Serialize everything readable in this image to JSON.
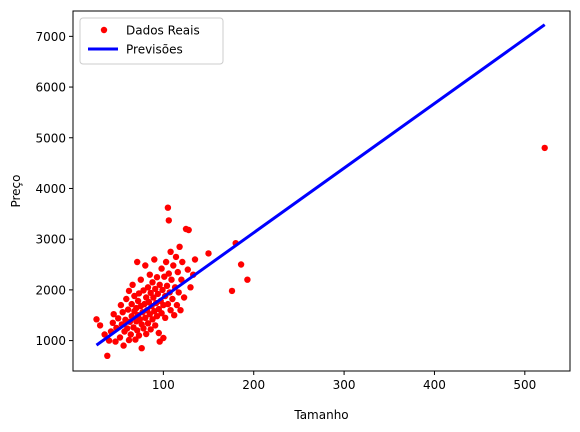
{
  "chart_data": {
    "type": "scatter",
    "title": "",
    "xlabel": "Tamanho",
    "ylabel": "Preço",
    "xlim": [
      0,
      550
    ],
    "ylim": [
      400,
      7500
    ],
    "xticks": [
      100,
      200,
      300,
      400,
      500
    ],
    "yticks": [
      1000,
      2000,
      3000,
      4000,
      5000,
      6000,
      7000
    ],
    "legend": {
      "placement": "top-left"
    },
    "series": [
      {
        "name": "Dados Reais",
        "kind": "scatter",
        "color": "#ff0000",
        "points": [
          [
            26,
            1420
          ],
          [
            30,
            1300
          ],
          [
            35,
            1120
          ],
          [
            38,
            700
          ],
          [
            40,
            1000
          ],
          [
            42,
            1180
          ],
          [
            44,
            1350
          ],
          [
            45,
            1520
          ],
          [
            47,
            980
          ],
          [
            48,
            1250
          ],
          [
            50,
            1440
          ],
          [
            52,
            1060
          ],
          [
            53,
            1700
          ],
          [
            54,
            1320
          ],
          [
            55,
            1560
          ],
          [
            56,
            900
          ],
          [
            57,
            1180
          ],
          [
            58,
            1410
          ],
          [
            59,
            1820
          ],
          [
            60,
            1240
          ],
          [
            61,
            1610
          ],
          [
            62,
            1010
          ],
          [
            62,
            1980
          ],
          [
            63,
            1370
          ],
          [
            64,
            1120
          ],
          [
            65,
            1720
          ],
          [
            65,
            1480
          ],
          [
            66,
            2100
          ],
          [
            67,
            1260
          ],
          [
            68,
            1580
          ],
          [
            68,
            1880
          ],
          [
            69,
            1020
          ],
          [
            70,
            1380
          ],
          [
            70,
            1640
          ],
          [
            71,
            2550
          ],
          [
            71,
            1200
          ],
          [
            72,
            1780
          ],
          [
            72,
            1500
          ],
          [
            73,
            1930
          ],
          [
            73,
            1100
          ],
          [
            74,
            1420
          ],
          [
            75,
            2200
          ],
          [
            75,
            1680
          ],
          [
            76,
            1320
          ],
          [
            76,
            850
          ],
          [
            77,
            1560
          ],
          [
            78,
            1990
          ],
          [
            78,
            1240
          ],
          [
            79,
            1720
          ],
          [
            80,
            2480
          ],
          [
            80,
            1450
          ],
          [
            81,
            1130
          ],
          [
            81,
            1850
          ],
          [
            82,
            1600
          ],
          [
            83,
            2050
          ],
          [
            83,
            1340
          ],
          [
            84,
            1760
          ],
          [
            85,
            1520
          ],
          [
            85,
            2300
          ],
          [
            86,
            1220
          ],
          [
            86,
            1940
          ],
          [
            87,
            1680
          ],
          [
            88,
            2150
          ],
          [
            88,
            1420
          ],
          [
            89,
            1850
          ],
          [
            90,
            1580
          ],
          [
            90,
            2600
          ],
          [
            91,
            1300
          ],
          [
            91,
            2020
          ],
          [
            92,
            1740
          ],
          [
            93,
            1480
          ],
          [
            93,
            2250
          ],
          [
            94,
            1920
          ],
          [
            95,
            1620
          ],
          [
            95,
            1150
          ],
          [
            96,
            2100
          ],
          [
            96,
            980
          ],
          [
            97,
            1780
          ],
          [
            98,
            2420
          ],
          [
            98,
            1540
          ],
          [
            99,
            2000
          ],
          [
            100,
            1700
          ],
          [
            100,
            1050
          ],
          [
            101,
            2260
          ],
          [
            102,
            1880
          ],
          [
            102,
            1450
          ],
          [
            103,
            2550
          ],
          [
            104,
            2080
          ],
          [
            105,
            1720
          ],
          [
            105,
            3620
          ],
          [
            106,
            2320
          ],
          [
            106,
            3370
          ],
          [
            107,
            1950
          ],
          [
            108,
            1600
          ],
          [
            108,
            2750
          ],
          [
            109,
            2200
          ],
          [
            110,
            1820
          ],
          [
            111,
            2480
          ],
          [
            112,
            1500
          ],
          [
            113,
            2050
          ],
          [
            114,
            2650
          ],
          [
            115,
            1700
          ],
          [
            116,
            2350
          ],
          [
            117,
            1950
          ],
          [
            118,
            2850
          ],
          [
            119,
            1600
          ],
          [
            120,
            2200
          ],
          [
            121,
            2550
          ],
          [
            123,
            1850
          ],
          [
            125,
            3200
          ],
          [
            127,
            2400
          ],
          [
            128,
            3180
          ],
          [
            130,
            2050
          ],
          [
            133,
            2300
          ],
          [
            135,
            2600
          ],
          [
            150,
            2720
          ],
          [
            176,
            1980
          ],
          [
            180,
            2920
          ],
          [
            186,
            2500
          ],
          [
            193,
            2200
          ],
          [
            522,
            4800
          ]
        ]
      },
      {
        "name": "Previsões",
        "kind": "line",
        "color": "#0000ff",
        "points": [
          [
            26,
            910
          ],
          [
            522,
            7230
          ]
        ]
      }
    ]
  }
}
